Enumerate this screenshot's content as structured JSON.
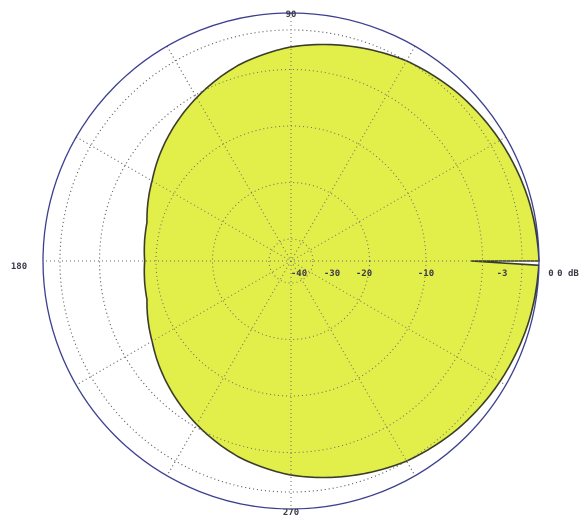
{
  "chart_data": {
    "type": "polar-area",
    "angle_labels": [
      "0",
      "90",
      "180",
      "270"
    ],
    "radial_labels": [
      "-40",
      "-30",
      "-20",
      "-10",
      "-3",
      "0 dB"
    ],
    "radial_values_db": [
      -40,
      -30,
      -20,
      -10,
      -3,
      0
    ],
    "fill_color": "#e2ee4a",
    "outline_color": "#3a3d2a",
    "outer_circle_color": "#3b3f8f",
    "pattern": {
      "shape": "cardioid",
      "angles_deg": [
        0,
        15,
        30,
        45,
        60,
        75,
        90,
        105,
        120,
        135,
        150,
        165,
        180,
        195,
        210,
        225,
        240,
        255,
        270,
        285,
        300,
        315,
        330,
        345
      ],
      "gain_db": [
        0,
        -0.5,
        -1.2,
        -2,
        -3,
        -4.5,
        -6,
        -8,
        -10.5,
        -13,
        -15.5,
        -17.5,
        -18,
        -17.5,
        -15.5,
        -13,
        -10.5,
        -8,
        -6,
        -4.5,
        -3,
        -2,
        -1.2,
        -0.5
      ]
    }
  }
}
